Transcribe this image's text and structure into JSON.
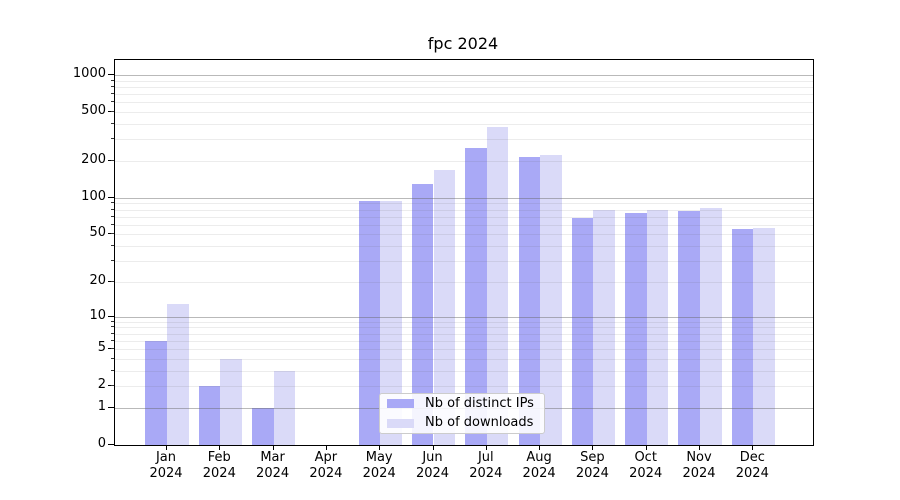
{
  "title": "fpc 2024",
  "chart_data": {
    "type": "bar",
    "title": "fpc 2024",
    "year_label": "2024",
    "categories": [
      "Jan",
      "Feb",
      "Mar",
      "Apr",
      "May",
      "Jun",
      "Jul",
      "Aug",
      "Sep",
      "Oct",
      "Nov",
      "Dec"
    ],
    "series": [
      {
        "name": "Nb of distinct IPs",
        "color": "#a9a9f6",
        "values": [
          6,
          2,
          1,
          0,
          95,
          130,
          255,
          215,
          68,
          75,
          78,
          55
        ]
      },
      {
        "name": "Nb of downloads",
        "color": "#dadaf8",
        "values": [
          13,
          4,
          3,
          0,
          94,
          170,
          380,
          225,
          80,
          80,
          82,
          57
        ]
      }
    ],
    "scale": "log1p",
    "ylim": [
      0,
      1320
    ],
    "yticks": [
      0,
      1,
      2,
      5,
      10,
      20,
      50,
      100,
      200,
      500,
      1000
    ],
    "grid": true,
    "grid_minor": true,
    "legend_position": "lower center-left inside plot",
    "colors": {
      "axis": "#000000",
      "grid_major": "#b1b1b1",
      "grid_minor": "#ededed",
      "background": "#ffffff"
    }
  }
}
